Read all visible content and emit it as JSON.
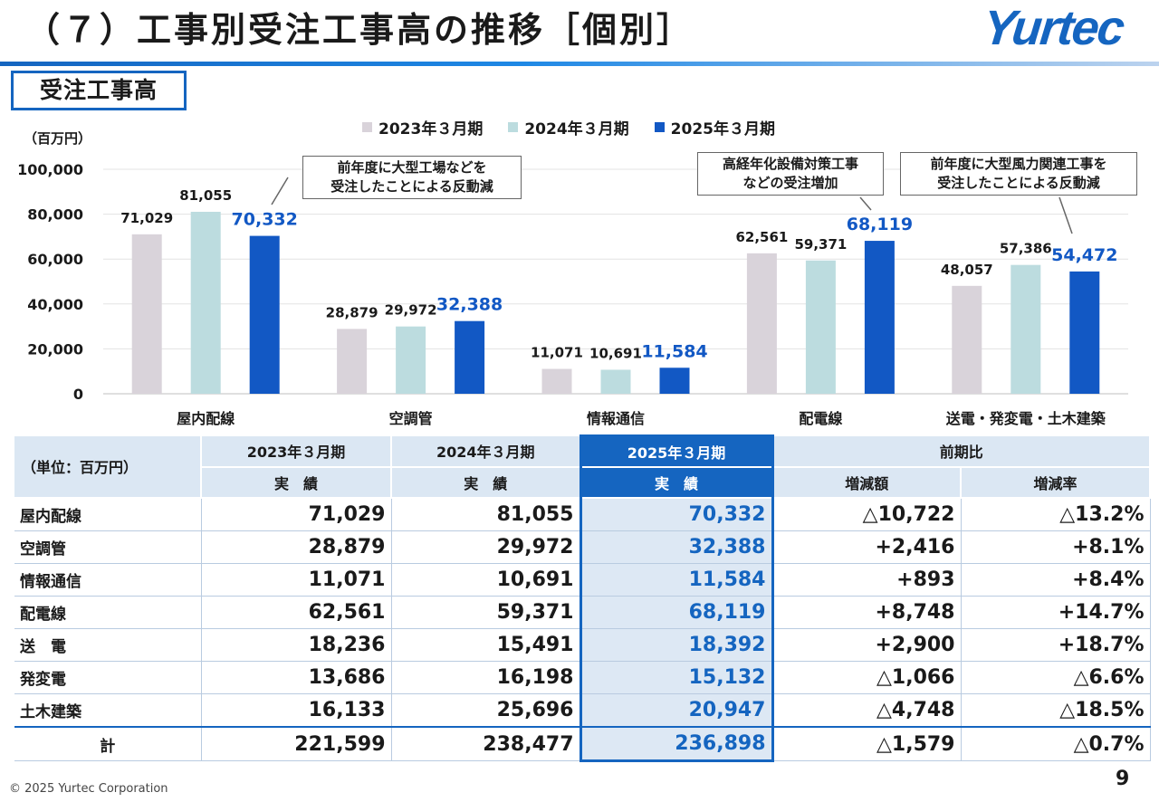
{
  "page": {
    "title": "（７）工事別受注工事高の推移［個別］",
    "logo": "Yurtec",
    "section_label": "受注工事高",
    "unit_label": "（百万円）",
    "footer": "© 2025 Yurtec Corporation",
    "page_number": "9"
  },
  "callouts": [
    {
      "text_line1": "前年度に大型工場などを",
      "text_line2": "受注したことによる反動減"
    },
    {
      "text_line1": "高経年化設備対策工事",
      "text_line2": "などの受注増加"
    },
    {
      "text_line1": "前年度に大型風力関連工事を",
      "text_line2": "受注したことによる反動減"
    }
  ],
  "chart_data": {
    "type": "bar",
    "categories": [
      "屋内配線",
      "空調管",
      "情報通信",
      "配電線",
      "送電・発変電・土木建築"
    ],
    "series": [
      {
        "name": "2023年３月期",
        "color": "#d9d3da",
        "values": [
          71029,
          28879,
          11071,
          62561,
          48057
        ],
        "labels": [
          "71,029",
          "28,879",
          "11,071",
          "62,561",
          "48,057"
        ]
      },
      {
        "name": "2024年３月期",
        "color": "#bcdcdf",
        "values": [
          81055,
          29972,
          10691,
          59371,
          57386
        ],
        "labels": [
          "81,055",
          "29,972",
          "10,691",
          "59,371",
          "57,386"
        ]
      },
      {
        "name": "2025年３月期",
        "color": "#1258c4",
        "values": [
          70332,
          32388,
          11584,
          68119,
          54472
        ],
        "labels": [
          "70,332",
          "32,388",
          "11,584",
          "68,119",
          "54,472"
        ]
      }
    ],
    "yticks": [
      "0",
      "20,000",
      "40,000",
      "60,000",
      "80,000",
      "100,000"
    ],
    "ylim": [
      0,
      100000
    ],
    "ylabel": "（百万円）",
    "grid": true,
    "legend": "top"
  },
  "table": {
    "unit_header": "（単位：百万円）",
    "period_headers": [
      "2023年３月期",
      "2024年３月期",
      "2025年３月期"
    ],
    "compare_header": "前期比",
    "sub_headers": [
      "実　績",
      "実　績",
      "実　績",
      "増減額",
      "増減率"
    ],
    "rows": [
      {
        "label": "屋内配線",
        "v2023": "71,029",
        "v2024": "81,055",
        "v2025": "70,332",
        "diff": "△10,722",
        "rate": "△13.2%"
      },
      {
        "label": "空調管",
        "v2023": "28,879",
        "v2024": "29,972",
        "v2025": "32,388",
        "diff": "+2,416",
        "rate": "+8.1%"
      },
      {
        "label": "情報通信",
        "v2023": "11,071",
        "v2024": "10,691",
        "v2025": "11,584",
        "diff": "+893",
        "rate": "+8.4%"
      },
      {
        "label": "配電線",
        "v2023": "62,561",
        "v2024": "59,371",
        "v2025": "68,119",
        "diff": "+8,748",
        "rate": "+14.7%"
      },
      {
        "label": "送　電",
        "v2023": "18,236",
        "v2024": "15,491",
        "v2025": "18,392",
        "diff": "+2,900",
        "rate": "+18.7%"
      },
      {
        "label": "発変電",
        "v2023": "13,686",
        "v2024": "16,198",
        "v2025": "15,132",
        "diff": "△1,066",
        "rate": "△6.6%"
      },
      {
        "label": "土木建築",
        "v2023": "16,133",
        "v2024": "25,696",
        "v2025": "20,947",
        "diff": "△4,748",
        "rate": "△18.5%"
      }
    ],
    "total": {
      "label": "計",
      "v2023": "221,599",
      "v2024": "238,477",
      "v2025": "236,898",
      "diff": "△1,579",
      "rate": "△0.7%"
    }
  }
}
